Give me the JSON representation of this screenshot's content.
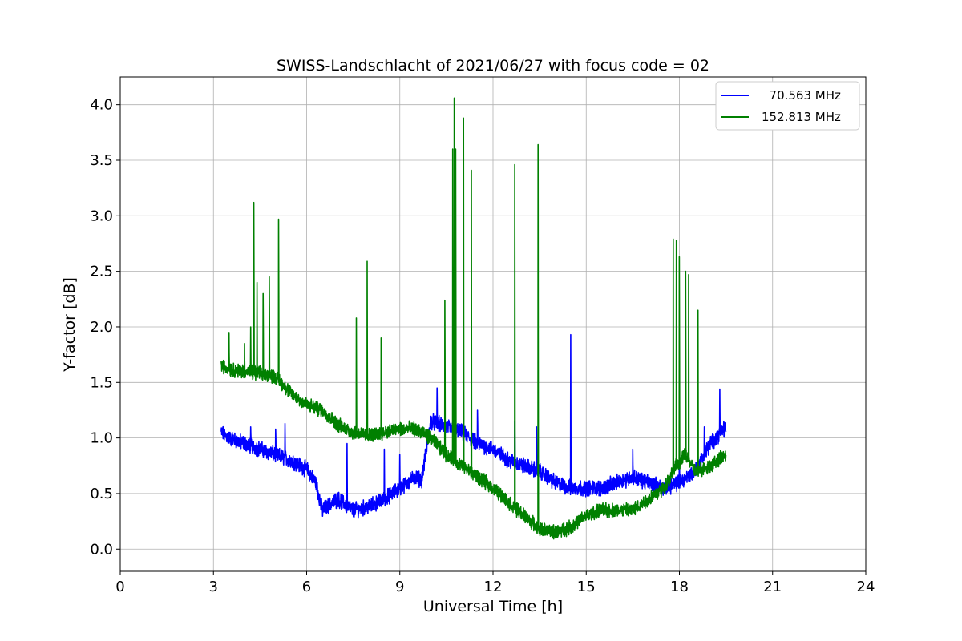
{
  "chart_data": {
    "type": "line",
    "title": "SWISS-Landschlacht of 2021/06/27 with focus code = 02",
    "xlabel": "Universal Time [h]",
    "ylabel": "Y-factor [dB]",
    "xlim": [
      0,
      24
    ],
    "ylim": [
      -0.2,
      4.25
    ],
    "xticks": [
      "0",
      "3",
      "6",
      "9",
      "12",
      "15",
      "18",
      "21",
      "24"
    ],
    "yticks": [
      "0.0",
      "0.5",
      "1.0",
      "1.5",
      "2.0",
      "2.5",
      "3.0",
      "3.5",
      "4.0"
    ],
    "grid": true,
    "legend_position": "top-right",
    "series": [
      {
        "name": "  70.563 MHz",
        "color": "#0000ff",
        "x": [
          3.25,
          3.5,
          4.0,
          4.5,
          5.0,
          5.5,
          6.0,
          6.3,
          6.5,
          7.0,
          7.5,
          8.0,
          8.5,
          9.0,
          9.5,
          9.7,
          10.0,
          10.5,
          11.0,
          11.5,
          12.0,
          12.5,
          13.0,
          13.5,
          14.0,
          14.5,
          15.0,
          15.5,
          16.0,
          16.5,
          17.0,
          17.5,
          18.0,
          18.5,
          19.0,
          19.5
        ],
        "y": [
          1.05,
          1.0,
          0.95,
          0.9,
          0.85,
          0.8,
          0.72,
          0.6,
          0.35,
          0.45,
          0.35,
          0.38,
          0.45,
          0.55,
          0.65,
          0.62,
          1.15,
          1.1,
          1.05,
          0.95,
          0.9,
          0.8,
          0.75,
          0.7,
          0.6,
          0.55,
          0.55,
          0.55,
          0.6,
          0.65,
          0.6,
          0.55,
          0.6,
          0.7,
          0.95,
          1.1
        ],
        "spikes": [
          [
            4.2,
            1.1
          ],
          [
            5.0,
            1.08
          ],
          [
            5.3,
            1.13
          ],
          [
            7.3,
            0.95
          ],
          [
            8.5,
            0.9
          ],
          [
            9.0,
            0.85
          ],
          [
            10.2,
            1.45
          ],
          [
            11.5,
            1.25
          ],
          [
            12.7,
            1.15
          ],
          [
            13.4,
            1.1
          ],
          [
            14.5,
            1.93
          ],
          [
            16.5,
            0.9
          ],
          [
            18.0,
            0.9
          ],
          [
            18.8,
            1.1
          ],
          [
            19.3,
            1.44
          ]
        ]
      },
      {
        "name": "152.813 MHz",
        "color": "#008000",
        "x": [
          3.25,
          3.5,
          4.0,
          4.5,
          5.0,
          5.5,
          6.0,
          6.5,
          7.0,
          7.5,
          8.0,
          8.5,
          9.0,
          9.5,
          10.0,
          10.5,
          11.0,
          11.5,
          12.0,
          12.5,
          13.0,
          13.5,
          14.0,
          14.5,
          15.0,
          15.5,
          16.0,
          16.5,
          17.0,
          17.5,
          17.9,
          18.2,
          18.5,
          19.0,
          19.5
        ],
        "y": [
          1.65,
          1.62,
          1.6,
          1.58,
          1.55,
          1.4,
          1.3,
          1.25,
          1.12,
          1.05,
          1.02,
          1.05,
          1.08,
          1.08,
          1.0,
          0.85,
          0.75,
          0.65,
          0.55,
          0.42,
          0.3,
          0.18,
          0.15,
          0.2,
          0.3,
          0.35,
          0.35,
          0.35,
          0.45,
          0.55,
          0.75,
          0.85,
          0.7,
          0.75,
          0.85
        ],
        "spikes": [
          [
            3.5,
            1.95
          ],
          [
            4.0,
            1.85
          ],
          [
            4.2,
            2.0
          ],
          [
            4.3,
            3.12
          ],
          [
            4.4,
            2.4
          ],
          [
            4.6,
            2.3
          ],
          [
            4.8,
            2.45
          ],
          [
            5.1,
            2.97
          ],
          [
            7.6,
            2.08
          ],
          [
            7.95,
            2.59
          ],
          [
            8.4,
            1.9
          ],
          [
            10.45,
            2.24
          ],
          [
            10.7,
            3.6
          ],
          [
            10.75,
            4.06
          ],
          [
            10.8,
            3.6
          ],
          [
            11.05,
            3.88
          ],
          [
            11.3,
            3.41
          ],
          [
            12.7,
            3.46
          ],
          [
            13.45,
            3.64
          ],
          [
            17.8,
            2.79
          ],
          [
            17.9,
            2.78
          ],
          [
            18.0,
            2.63
          ],
          [
            18.2,
            2.5
          ],
          [
            18.3,
            2.47
          ],
          [
            18.6,
            2.15
          ]
        ]
      }
    ]
  }
}
